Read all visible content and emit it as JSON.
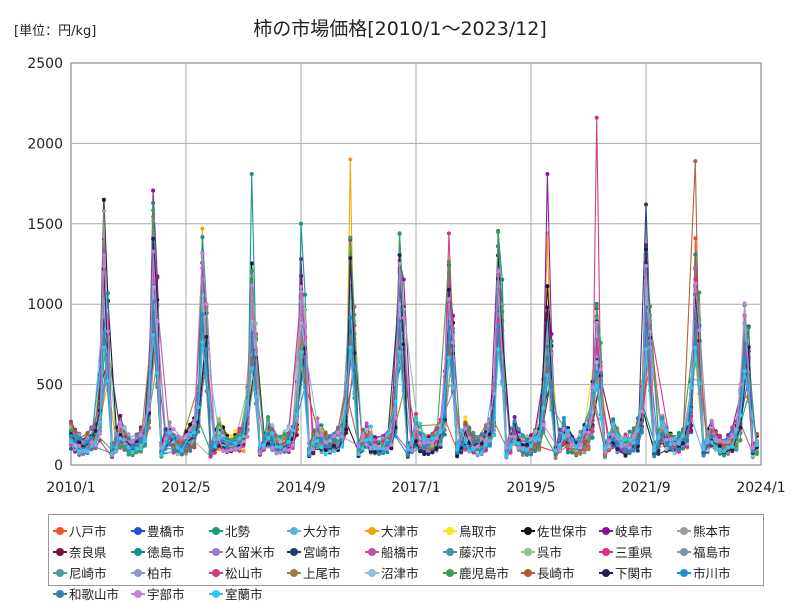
{
  "unit_label": "[単位：円/kg]",
  "chart_data": {
    "type": "line",
    "title": "柿の市場価格[2010/1～2023/12]",
    "xlabel": "",
    "ylabel": "",
    "ylim": [
      0,
      2500
    ],
    "y_ticks": [
      0,
      500,
      1000,
      1500,
      2000,
      2500
    ],
    "x_ticks": [
      "2010/1",
      "2012/5",
      "2014/9",
      "2017/1",
      "2019/5",
      "2021/9",
      "2024/1"
    ],
    "grid": true,
    "legend_position": "bottom",
    "colors": [
      "#f4511e",
      "#1a53d9",
      "#10a36b",
      "#55b5e8",
      "#f0a400",
      "#f6e81a",
      "#111111",
      "#8b0fa0",
      "#9a9a9a",
      "#7a1040",
      "#10908a",
      "#9a80c8",
      "#203a70",
      "#c050a0",
      "#5090a0",
      "#90c090",
      "#e02a86",
      "#8090b0",
      "#48a0a0",
      "#8898c8",
      "#c83a7c",
      "#9b8040",
      "#88c0e0",
      "#38a050",
      "#b05a30",
      "#202050",
      "#1f8fd0",
      "#3a7fb0",
      "#c77fe0",
      "#2ec8f0"
    ],
    "series_names": [
      "八戸市",
      "豊橋市",
      "北勢",
      "大分市",
      "大津市",
      "鳥取市",
      "佐世保市",
      "岐阜市",
      "熊本市",
      "奈良県",
      "徳島市",
      "久留米市",
      "宮崎市",
      "船橋市",
      "藤沢市",
      "呉市",
      "三重県",
      "福島市",
      "尼崎市",
      "柏市",
      "松山市",
      "上尾市",
      "沼津市",
      "鹿児島市",
      "長崎市",
      "下関市",
      "市川市",
      "和歌山市",
      "宇部市",
      "室蘭市"
    ],
    "peaks": [
      1250,
      1440,
      1300,
      1130,
      1200,
      1240,
      1290,
      1140,
      1300,
      1000,
      900,
      1320,
      1220,
      1040
    ],
    "spikes": [
      {
        "series": "大津市",
        "year": 2010,
        "value": 1770
      },
      {
        "series": "熊本市",
        "year": 2010,
        "value": 1580
      },
      {
        "series": "佐世保市",
        "year": 2010,
        "value": 1650
      },
      {
        "series": "徳島市",
        "year": 2011,
        "value": 1630
      },
      {
        "series": "大津市",
        "year": 2012,
        "value": 1470
      },
      {
        "series": "徳島市",
        "year": 2013,
        "value": 1810
      },
      {
        "series": "徳島市",
        "year": 2014,
        "value": 1500
      },
      {
        "series": "大津市",
        "year": 2015,
        "value": 1900
      },
      {
        "series": "三重県",
        "year": 2017,
        "value": 1440
      },
      {
        "series": "岐阜市",
        "year": 2019,
        "value": 1810
      },
      {
        "series": "大津市",
        "year": 2019,
        "value": 1440
      },
      {
        "series": "松山市",
        "year": 2020,
        "value": 2160
      },
      {
        "series": "宮崎市",
        "year": 2021,
        "value": 1620
      },
      {
        "series": "長崎市",
        "year": 2022,
        "value": 1890
      },
      {
        "series": "八戸市",
        "year": 2022,
        "value": 1410
      }
    ]
  }
}
